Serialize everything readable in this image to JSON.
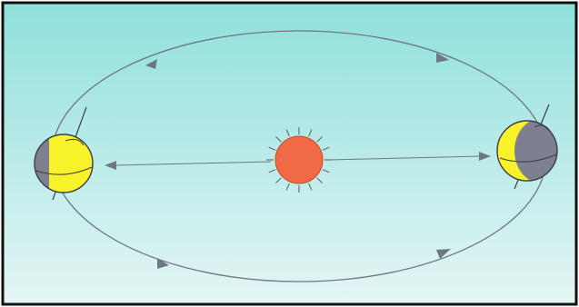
{
  "diagram": {
    "colors": {
      "sky_top": "#8fe0dc",
      "sky_bottom": "#e4f6f5",
      "frame": "#111111",
      "orbit": "#707784",
      "sun_fill": "#ef6a45",
      "sun_rays": "#5b5b60",
      "earth_day": "#f7f22a",
      "earth_night": "#7f808f",
      "earth_outline": "#3c3c48"
    },
    "orbit_direction": "counter-clockwise"
  }
}
